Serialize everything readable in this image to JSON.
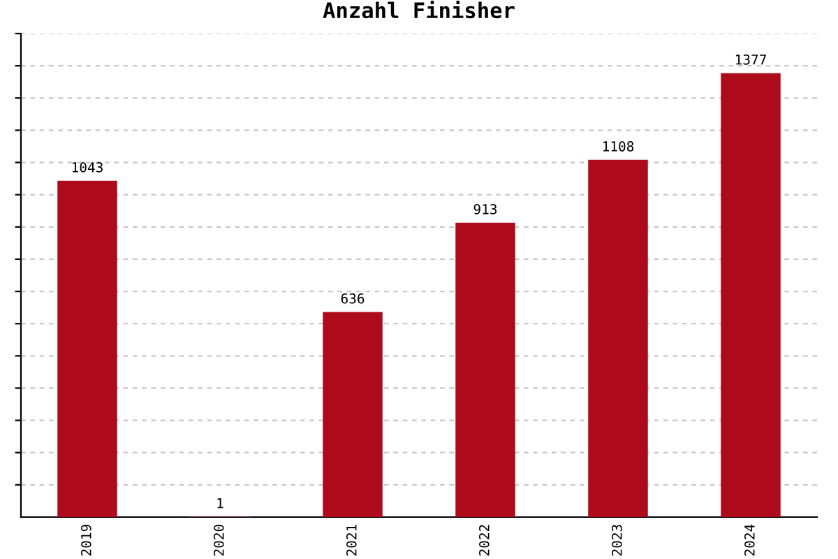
{
  "chart_data": {
    "type": "bar",
    "title": "Anzahl Finisher",
    "categories": [
      "2019",
      "2020",
      "2021",
      "2022",
      "2023",
      "2024"
    ],
    "values": [
      1043,
      1,
      636,
      913,
      1108,
      1377
    ],
    "color": "#ad0b1b",
    "data_labels": true,
    "ylim": [
      0,
      1500
    ],
    "yticks": [
      {
        "value": 100,
        "label": null
      },
      {
        "value": 200,
        "label": null
      },
      {
        "value": 300,
        "label": null
      },
      {
        "value": 400,
        "label": null
      },
      {
        "value": 500,
        "label": null
      },
      {
        "value": 600,
        "label": null
      },
      {
        "value": 700,
        "label": null
      },
      {
        "value": 800,
        "label": null
      },
      {
        "value": 900,
        "label": null
      },
      {
        "value": 1000,
        "label": null
      },
      {
        "value": 1100,
        "label": null
      },
      {
        "value": 1200,
        "label": null
      },
      {
        "value": 1300,
        "label": null
      },
      {
        "value": 1400,
        "label": null
      },
      {
        "value": 1500,
        "label": null
      }
    ],
    "grid": "y"
  }
}
